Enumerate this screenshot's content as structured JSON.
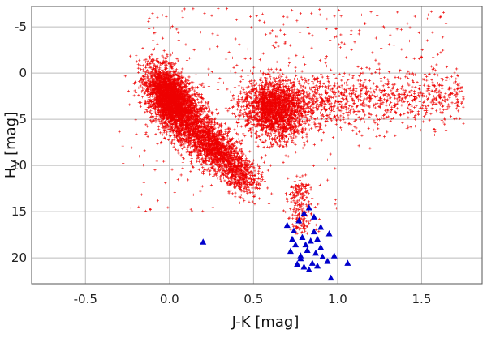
{
  "chart_data": {
    "type": "scatter",
    "title": "",
    "xlabel": "J-K [mag]",
    "ylabel": "H",
    "ylabel_sub": "V",
    "ylabel_suffix": " [mag]",
    "xlim": [
      -0.82,
      1.86
    ],
    "ylim": [
      22.8,
      -7.2
    ],
    "y_inverted": true,
    "grid": true,
    "x_ticks": [
      -0.5,
      0.0,
      0.5,
      1.0,
      1.5
    ],
    "x_tick_labels": [
      "-0.5",
      "0.0",
      "0.5",
      "1.0",
      "1.5"
    ],
    "y_ticks": [
      -5,
      0,
      5,
      10,
      15,
      20
    ],
    "y_tick_labels": [
      "-5",
      "0",
      "5",
      "10",
      "15",
      "20"
    ],
    "colors": {
      "field": "#ee0000",
      "candidates": "#0000cc",
      "grid": "#bbbbbb"
    },
    "series": [
      {
        "marker": "plus",
        "color": "#ee0000",
        "representative_points": [
          [
            0.0,
            2.0
          ],
          [
            0.05,
            3.5
          ],
          [
            -0.05,
            1.5
          ],
          [
            0.1,
            5.0
          ],
          [
            0.2,
            6.5
          ],
          [
            0.3,
            8.0
          ],
          [
            0.4,
            10.5
          ],
          [
            0.45,
            12.0
          ],
          [
            0.6,
            3.0
          ],
          [
            0.65,
            4.5
          ],
          [
            0.7,
            2.5
          ],
          [
            0.9,
            3.0
          ],
          [
            1.1,
            3.5
          ],
          [
            1.3,
            3.0
          ],
          [
            0.8,
            14.0
          ],
          [
            0.85,
            16.0
          ],
          [
            -0.1,
            -5.0
          ],
          [
            1.55,
            -1.0
          ],
          [
            -0.5,
            2.0
          ],
          [
            0.3,
            -3.0
          ]
        ]
      },
      {
        "marker": "triangle",
        "color": "#0000cc",
        "values": [
          [
            0.2,
            18.3
          ],
          [
            0.7,
            16.5
          ],
          [
            0.74,
            17.1
          ],
          [
            0.77,
            16.0
          ],
          [
            0.8,
            15.2
          ],
          [
            0.83,
            14.6
          ],
          [
            0.86,
            15.6
          ],
          [
            0.9,
            16.7
          ],
          [
            0.95,
            17.4
          ],
          [
            0.88,
            18.0
          ],
          [
            0.84,
            18.2
          ],
          [
            0.79,
            17.8
          ],
          [
            0.75,
            18.6
          ],
          [
            0.72,
            19.3
          ],
          [
            0.78,
            19.8
          ],
          [
            0.82,
            19.2
          ],
          [
            0.87,
            19.5
          ],
          [
            0.91,
            19.9
          ],
          [
            0.85,
            20.6
          ],
          [
            0.8,
            21.0
          ],
          [
            0.76,
            20.7
          ],
          [
            0.94,
            20.4
          ],
          [
            0.98,
            19.8
          ],
          [
            0.83,
            21.3
          ],
          [
            0.88,
            20.9
          ],
          [
            0.96,
            22.2
          ],
          [
            1.06,
            20.6
          ],
          [
            0.81,
            18.6
          ],
          [
            0.86,
            17.2
          ],
          [
            0.73,
            18.0
          ],
          [
            0.9,
            18.9
          ],
          [
            0.78,
            20.1
          ]
        ]
      }
    ]
  }
}
